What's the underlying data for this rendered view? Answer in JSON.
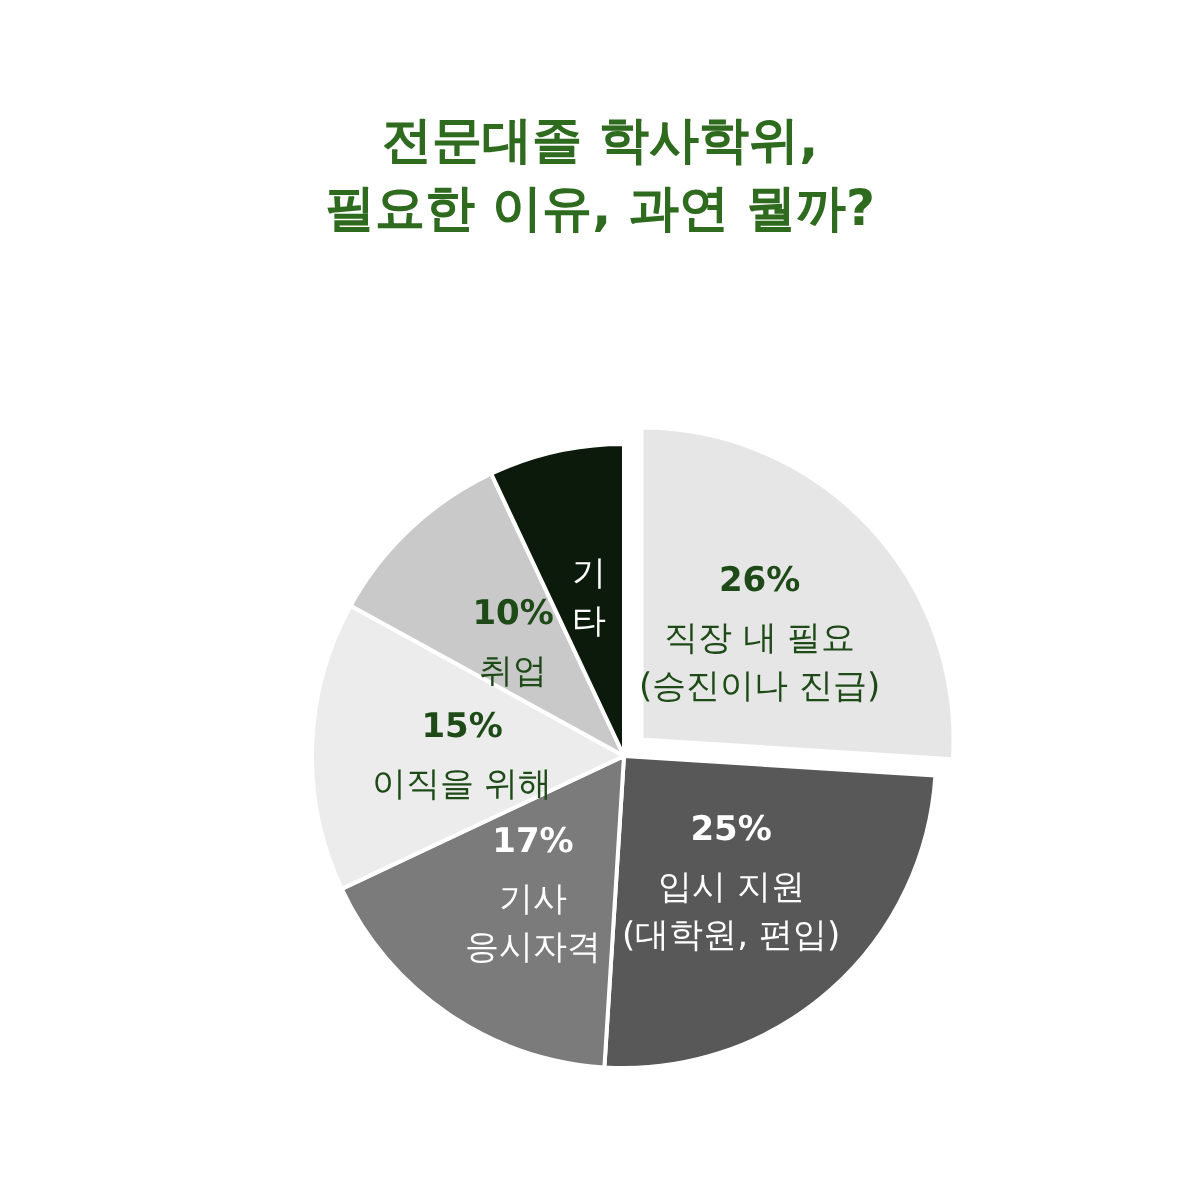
{
  "chart_data": {
    "type": "pie",
    "title": "전문대졸 학사학위,\n필요한 이유, 과연 뭘까?",
    "categories": [
      "직장 내 필요\n(승진이나 진급)",
      "입시 지원\n(대학원, 편입)",
      "기사\n응시자격",
      "이직을 위해",
      "취업",
      "기\n타"
    ],
    "values": [
      26,
      25,
      17,
      15,
      10,
      7
    ],
    "value_labels": [
      "26%",
      "25%",
      "17%",
      "15%",
      "10%",
      null
    ],
    "colors": [
      "#e6e6e6",
      "#585858",
      "#7b7b7b",
      "#ececec",
      "#c9c9c9",
      "#0c1a0c"
    ],
    "legend": false
  }
}
